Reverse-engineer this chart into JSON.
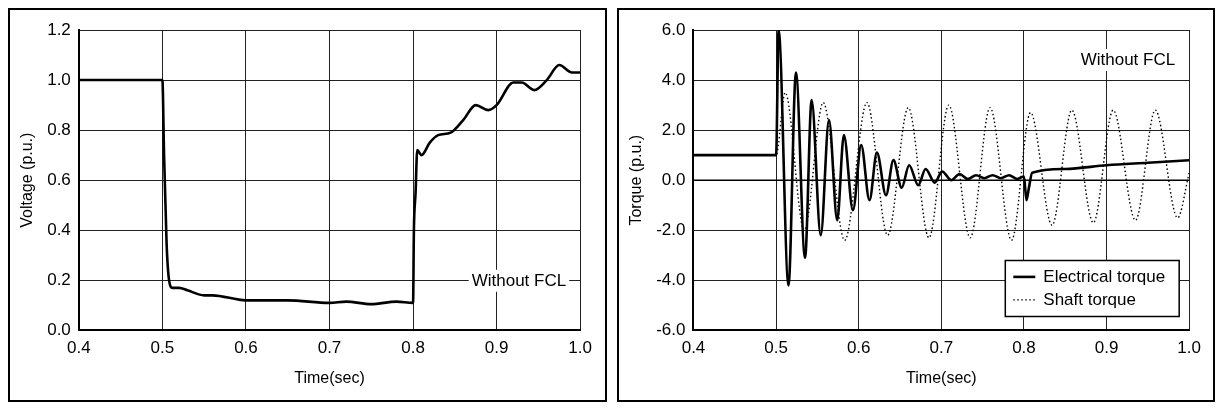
{
  "chart_data": [
    {
      "type": "line",
      "xlabel": "Time(sec)",
      "ylabel": "Voltage (p.u.)",
      "annotations": [
        "Without FCL"
      ],
      "xlim": [
        0.4,
        1.0
      ],
      "xticks": [
        0.4,
        0.5,
        0.6,
        0.7,
        0.8,
        0.9,
        {
          "value": 1,
          "label": "1.0"
        }
      ],
      "ylim": [
        0,
        1.2
      ],
      "yticks": [
        {
          "value": 0,
          "label": "0.0"
        },
        0.2,
        0.4,
        0.6,
        0.8,
        {
          "value": 1,
          "label": "1.0"
        },
        1.2
      ],
      "grid": true,
      "marker": "none",
      "legend": false,
      "series": [
        {
          "color": "#000000",
          "line_style": "solid",
          "x": [
            0.4,
            0.5,
            0.502,
            0.505,
            0.508,
            0.512,
            0.52,
            0.53,
            0.55,
            0.56,
            0.6,
            0.62,
            0.65,
            0.7,
            0.72,
            0.75,
            0.78,
            0.8,
            0.801,
            0.803,
            0.805,
            0.81,
            0.82,
            0.83,
            0.845,
            0.86,
            0.875,
            0.89,
            0.9,
            0.92,
            0.93,
            0.945,
            0.96,
            0.975,
            0.99,
            1.0
          ],
          "values": [
            1.0,
            1.0,
            0.7,
            0.35,
            0.2,
            0.17,
            0.17,
            0.16,
            0.14,
            0.14,
            0.12,
            0.12,
            0.12,
            0.11,
            0.115,
            0.105,
            0.115,
            0.11,
            0.4,
            0.55,
            0.72,
            0.7,
            0.75,
            0.78,
            0.79,
            0.84,
            0.9,
            0.88,
            0.9,
            0.99,
            0.99,
            0.96,
            1.0,
            1.06,
            1.03,
            1.03
          ]
        }
      ]
    },
    {
      "type": "line",
      "xlabel": "Time(sec)",
      "ylabel": "Torque (p.u.)",
      "annotations": [
        "Without FCL"
      ],
      "xlim": [
        0.4,
        1.0
      ],
      "xticks": [
        0.4,
        0.5,
        0.6,
        0.7,
        0.8,
        0.9,
        {
          "value": 1,
          "label": "1.0"
        }
      ],
      "ylim": [
        -6,
        6
      ],
      "yticks": [
        {
          "value": -6,
          "label": "-6.0"
        },
        {
          "value": -4,
          "label": "-4.0"
        },
        {
          "value": -2,
          "label": "-2.0"
        },
        {
          "value": 0,
          "label": "0.0"
        },
        {
          "value": 2,
          "label": "2.0"
        },
        {
          "value": 4,
          "label": "4.0"
        },
        {
          "value": 6,
          "label": "6.0"
        }
      ],
      "grid": true,
      "marker": "none",
      "legend": "bottom right",
      "ref_lines": [
        {
          "axis": "y",
          "value": 0,
          "color": "#000000",
          "line_style": "solid"
        }
      ],
      "series": [
        {
          "name": "Electrical torque",
          "color": "#000000",
          "line_style": "solid",
          "x": [
            0.4,
            0.5,
            0.503,
            0.515,
            0.524,
            0.535,
            0.543,
            0.554,
            0.564,
            0.574,
            0.582,
            0.593,
            0.603,
            0.613,
            0.622,
            0.633,
            0.642,
            0.652,
            0.661,
            0.672,
            0.681,
            0.692,
            0.701,
            0.712,
            0.722,
            0.732,
            0.742,
            0.752,
            0.762,
            0.772,
            0.782,
            0.792,
            0.8,
            0.803,
            0.806,
            0.81,
            0.85,
            0.9,
            0.95,
            1.0
          ],
          "values": [
            1,
            1,
            6.0,
            -4.2,
            4.3,
            -3.1,
            3.2,
            -2.2,
            2.4,
            -1.6,
            1.8,
            -1.2,
            1.4,
            -0.8,
            1.1,
            -0.6,
            0.8,
            -0.3,
            0.6,
            -0.2,
            0.45,
            -0.1,
            0.35,
            0.0,
            0.25,
            0.05,
            0.2,
            0.08,
            0.2,
            0.08,
            0.2,
            0.05,
            0.15,
            -0.8,
            -0.3,
            0.3,
            0.45,
            0.6,
            0.7,
            0.8
          ]
        },
        {
          "name": "Shaft torque",
          "color": "#000000",
          "line_style": "dotted",
          "x": [
            0.4,
            0.5,
            0.511,
            0.534,
            0.557,
            0.583,
            0.61,
            0.635,
            0.66,
            0.685,
            0.709,
            0.735,
            0.759,
            0.785,
            0.808,
            0.834,
            0.858,
            0.884,
            0.908,
            0.935,
            0.959,
            0.986,
            1.0
          ],
          "values": [
            1,
            1,
            3.5,
            -2.0,
            3.1,
            -2.4,
            3.1,
            -2.2,
            2.9,
            -2.3,
            3.0,
            -2.3,
            2.9,
            -2.4,
            2.7,
            -1.8,
            2.8,
            -1.7,
            2.8,
            -1.6,
            2.8,
            -1.5,
            0.3
          ]
        }
      ]
    }
  ]
}
